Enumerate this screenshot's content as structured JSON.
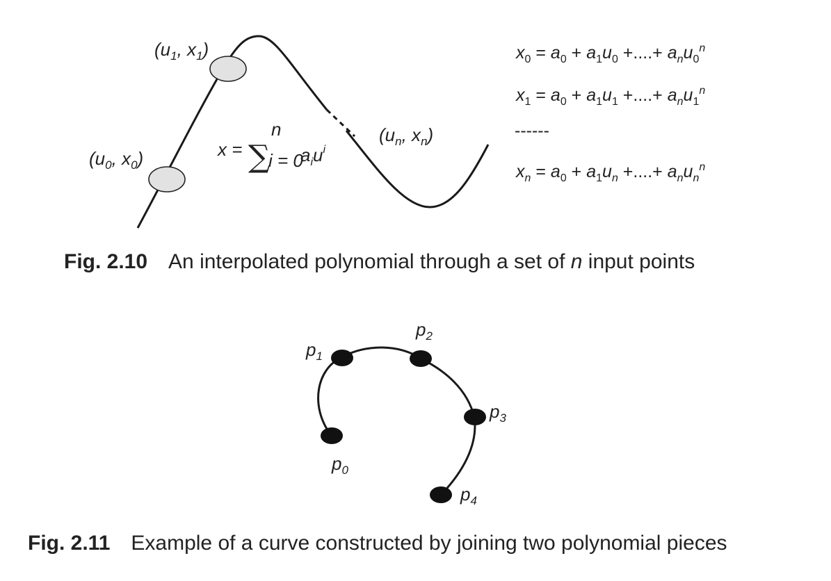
{
  "fig1": {
    "labels": {
      "u1x1": "(u1, x1)",
      "u0x0": "(u0, x0)",
      "unxn": "(un, xn)",
      "sum": "x = Σ_{i=0}^{n} a_i u^i"
    },
    "equations": [
      "x0 = a0 + a1u0 +....+ anu0^n",
      "x1 = a0 + a1u1 +....+ anu1^n",
      "------",
      "xn = a0 + a1un +....+ anun^n"
    ],
    "caption": {
      "number": "Fig. 2.10",
      "text_before": "An interpolated polynomial through a set of ",
      "italic": "n",
      "text_after": " input points"
    }
  },
  "fig2": {
    "points": [
      "p0",
      "p1",
      "p2",
      "p3",
      "p4"
    ],
    "caption": {
      "number": "Fig. 2.11",
      "text": "Example of a curve constructed by joining two polynomial pieces"
    }
  }
}
